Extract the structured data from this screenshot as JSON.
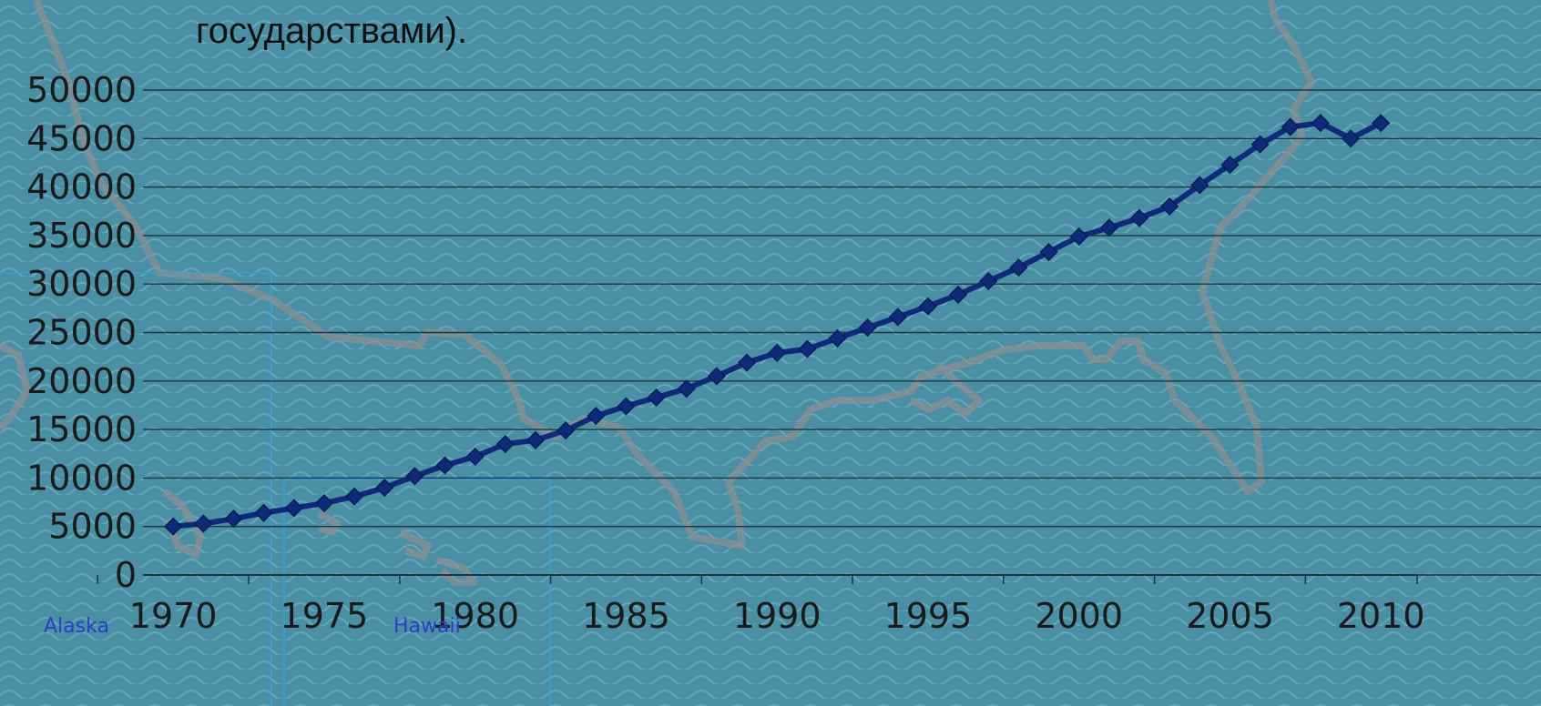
{
  "slide": {
    "title_line": "государствами).",
    "inset_labels": {
      "alaska": "Alaska",
      "hawaii": "Hawaii"
    }
  },
  "colors": {
    "background": "#4a8fa3",
    "wave": "#6aaebf",
    "series_line": "#0e2a78",
    "gridline": "#1f3340",
    "map_outline": "#8a8f93",
    "inset_box": "#3aa0d8"
  },
  "chart_data": {
    "type": "line",
    "title": "",
    "xlabel": "",
    "ylabel": "",
    "ylim": [
      0,
      50000
    ],
    "yticks": [
      "0",
      "5000",
      "10000",
      "15000",
      "20000",
      "25000",
      "30000",
      "35000",
      "40000",
      "45000",
      "50000"
    ],
    "xticks": [
      "1970",
      "1975",
      "1980",
      "1985",
      "1990",
      "1995",
      "2000",
      "2005",
      "2010"
    ],
    "grid": true,
    "legend": "none",
    "marker": "diamond",
    "series": [
      {
        "x": [
          1970,
          1971,
          1972,
          1973,
          1974,
          1975,
          1976,
          1977,
          1978,
          1979,
          1980,
          1981,
          1982,
          1983,
          1984,
          1985,
          1986,
          1987,
          1988,
          1989,
          1990,
          1991,
          1992,
          1993,
          1994,
          1995,
          1996,
          1997,
          1998,
          1999,
          2000,
          2001,
          2002,
          2003,
          2004,
          2005,
          2006,
          2007,
          2008,
          2009,
          2010
        ],
        "values": [
          5000,
          5300,
          5800,
          6400,
          6900,
          7400,
          8100,
          9000,
          10200,
          11300,
          12200,
          13500,
          13900,
          14900,
          16400,
          17400,
          18300,
          19200,
          20500,
          21900,
          22900,
          23300,
          24400,
          25500,
          26600,
          27700,
          28900,
          30300,
          31700,
          33300,
          34900,
          35800,
          36800,
          38000,
          40200,
          42300,
          44400,
          46200,
          46600,
          45000,
          46600
        ]
      }
    ]
  }
}
